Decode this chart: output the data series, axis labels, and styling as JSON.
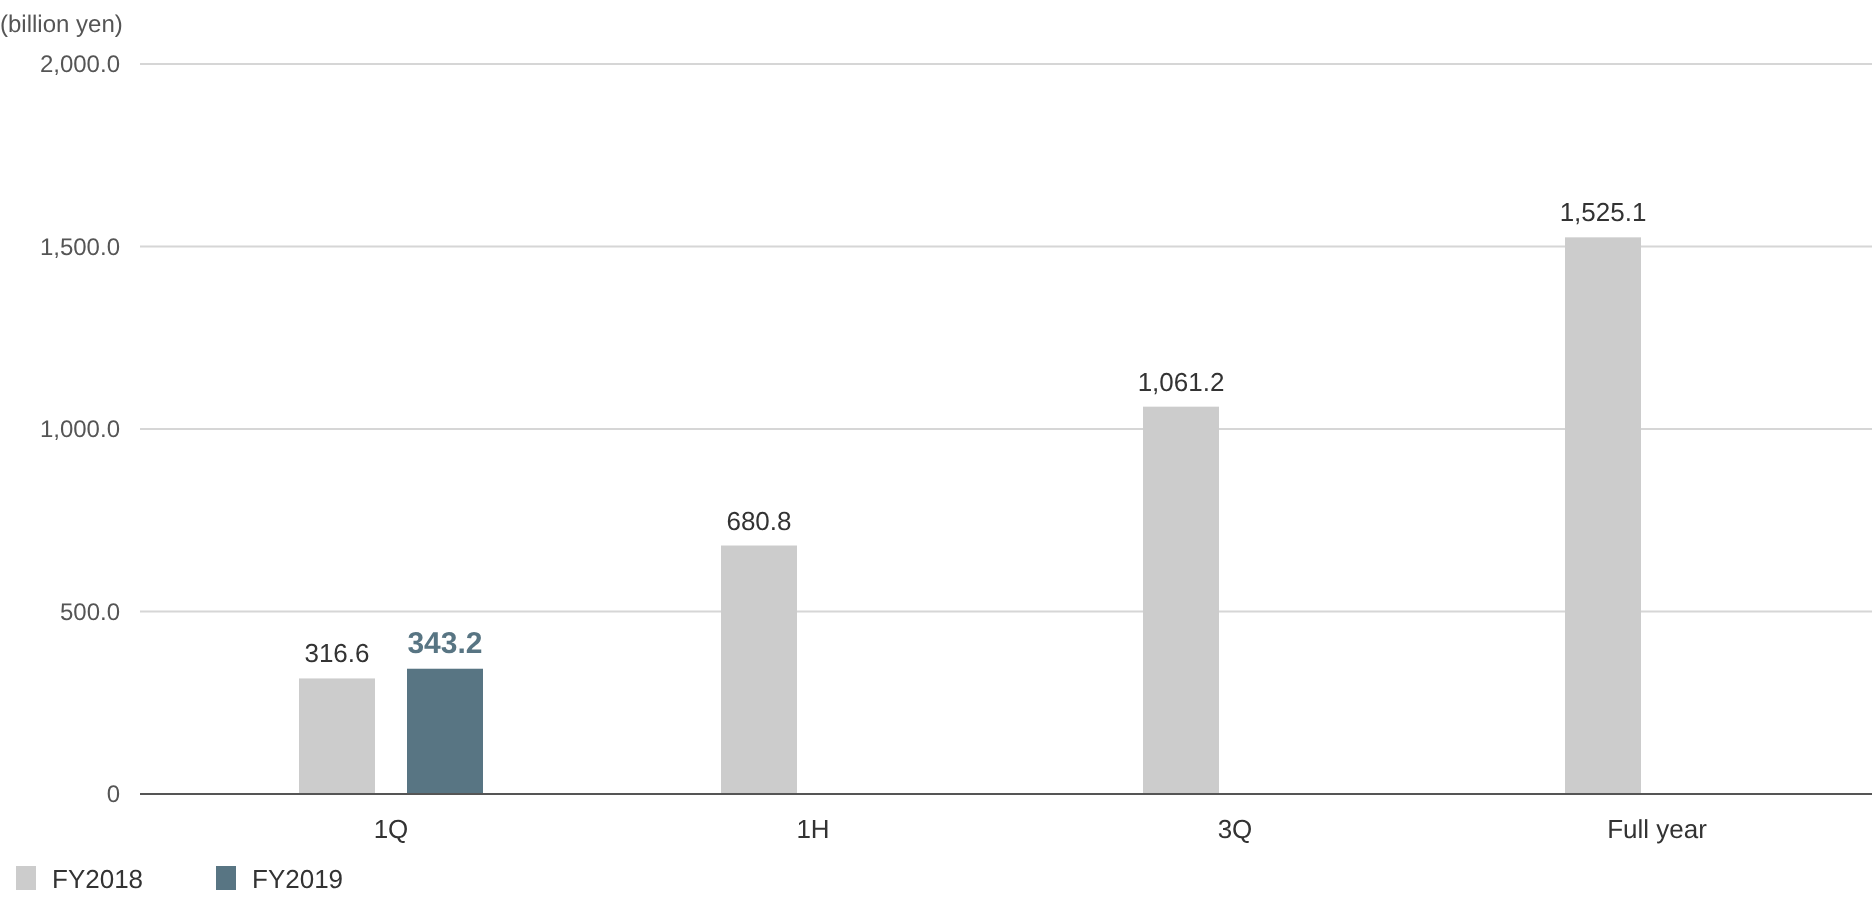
{
  "chart_data": {
    "type": "bar",
    "ylabel": "(billion yen)",
    "categories": [
      "1Q",
      "1H",
      "3Q",
      "Full year"
    ],
    "series": [
      {
        "name": "FY2018",
        "color": "#cccccc",
        "values": [
          316.6,
          680.8,
          1061.2,
          1525.1
        ],
        "value_labels": [
          "316.6",
          "680.8",
          "1,061.2",
          "1,525.1"
        ]
      },
      {
        "name": "FY2019",
        "color": "#587583",
        "values": [
          343.2,
          null,
          null,
          null
        ],
        "value_labels": [
          "343.2",
          null,
          null,
          null
        ]
      }
    ],
    "ylim": [
      0,
      2000
    ],
    "yticks": [
      0,
      {
        "value": 500,
        "label": "500.0"
      },
      {
        "value": 1000,
        "label": "1,000.0"
      },
      {
        "value": 1500,
        "label": "1,500.0"
      },
      {
        "value": 2000,
        "label": "2,000.0"
      }
    ],
    "grid": "y",
    "legend": "bottom left"
  }
}
